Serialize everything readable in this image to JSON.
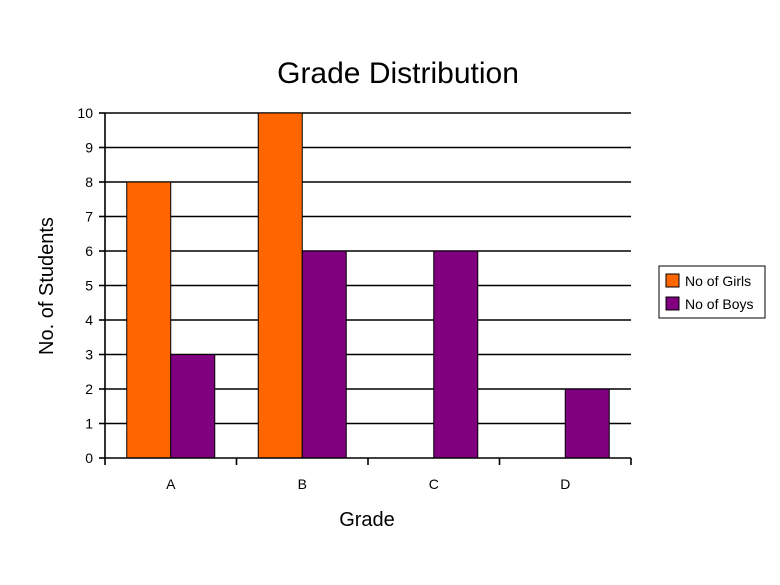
{
  "chart_data": {
    "type": "bar",
    "title": "Grade Distribution",
    "xlabel": "Grade",
    "ylabel": "No. of Students",
    "categories": [
      "A",
      "B",
      "C",
      "D"
    ],
    "series": [
      {
        "name": "No of Girls",
        "values": [
          8,
          10,
          0,
          0
        ],
        "color": "#ff6600"
      },
      {
        "name": "No of Boys",
        "values": [
          3,
          6,
          6,
          2
        ],
        "color": "#800080"
      }
    ],
    "ylim": [
      0,
      10
    ],
    "yticks": [
      "0",
      "1",
      "2",
      "3",
      "4",
      "5",
      "6",
      "7",
      "8",
      "9",
      "10"
    ],
    "grid": true,
    "legend_position": "right"
  }
}
